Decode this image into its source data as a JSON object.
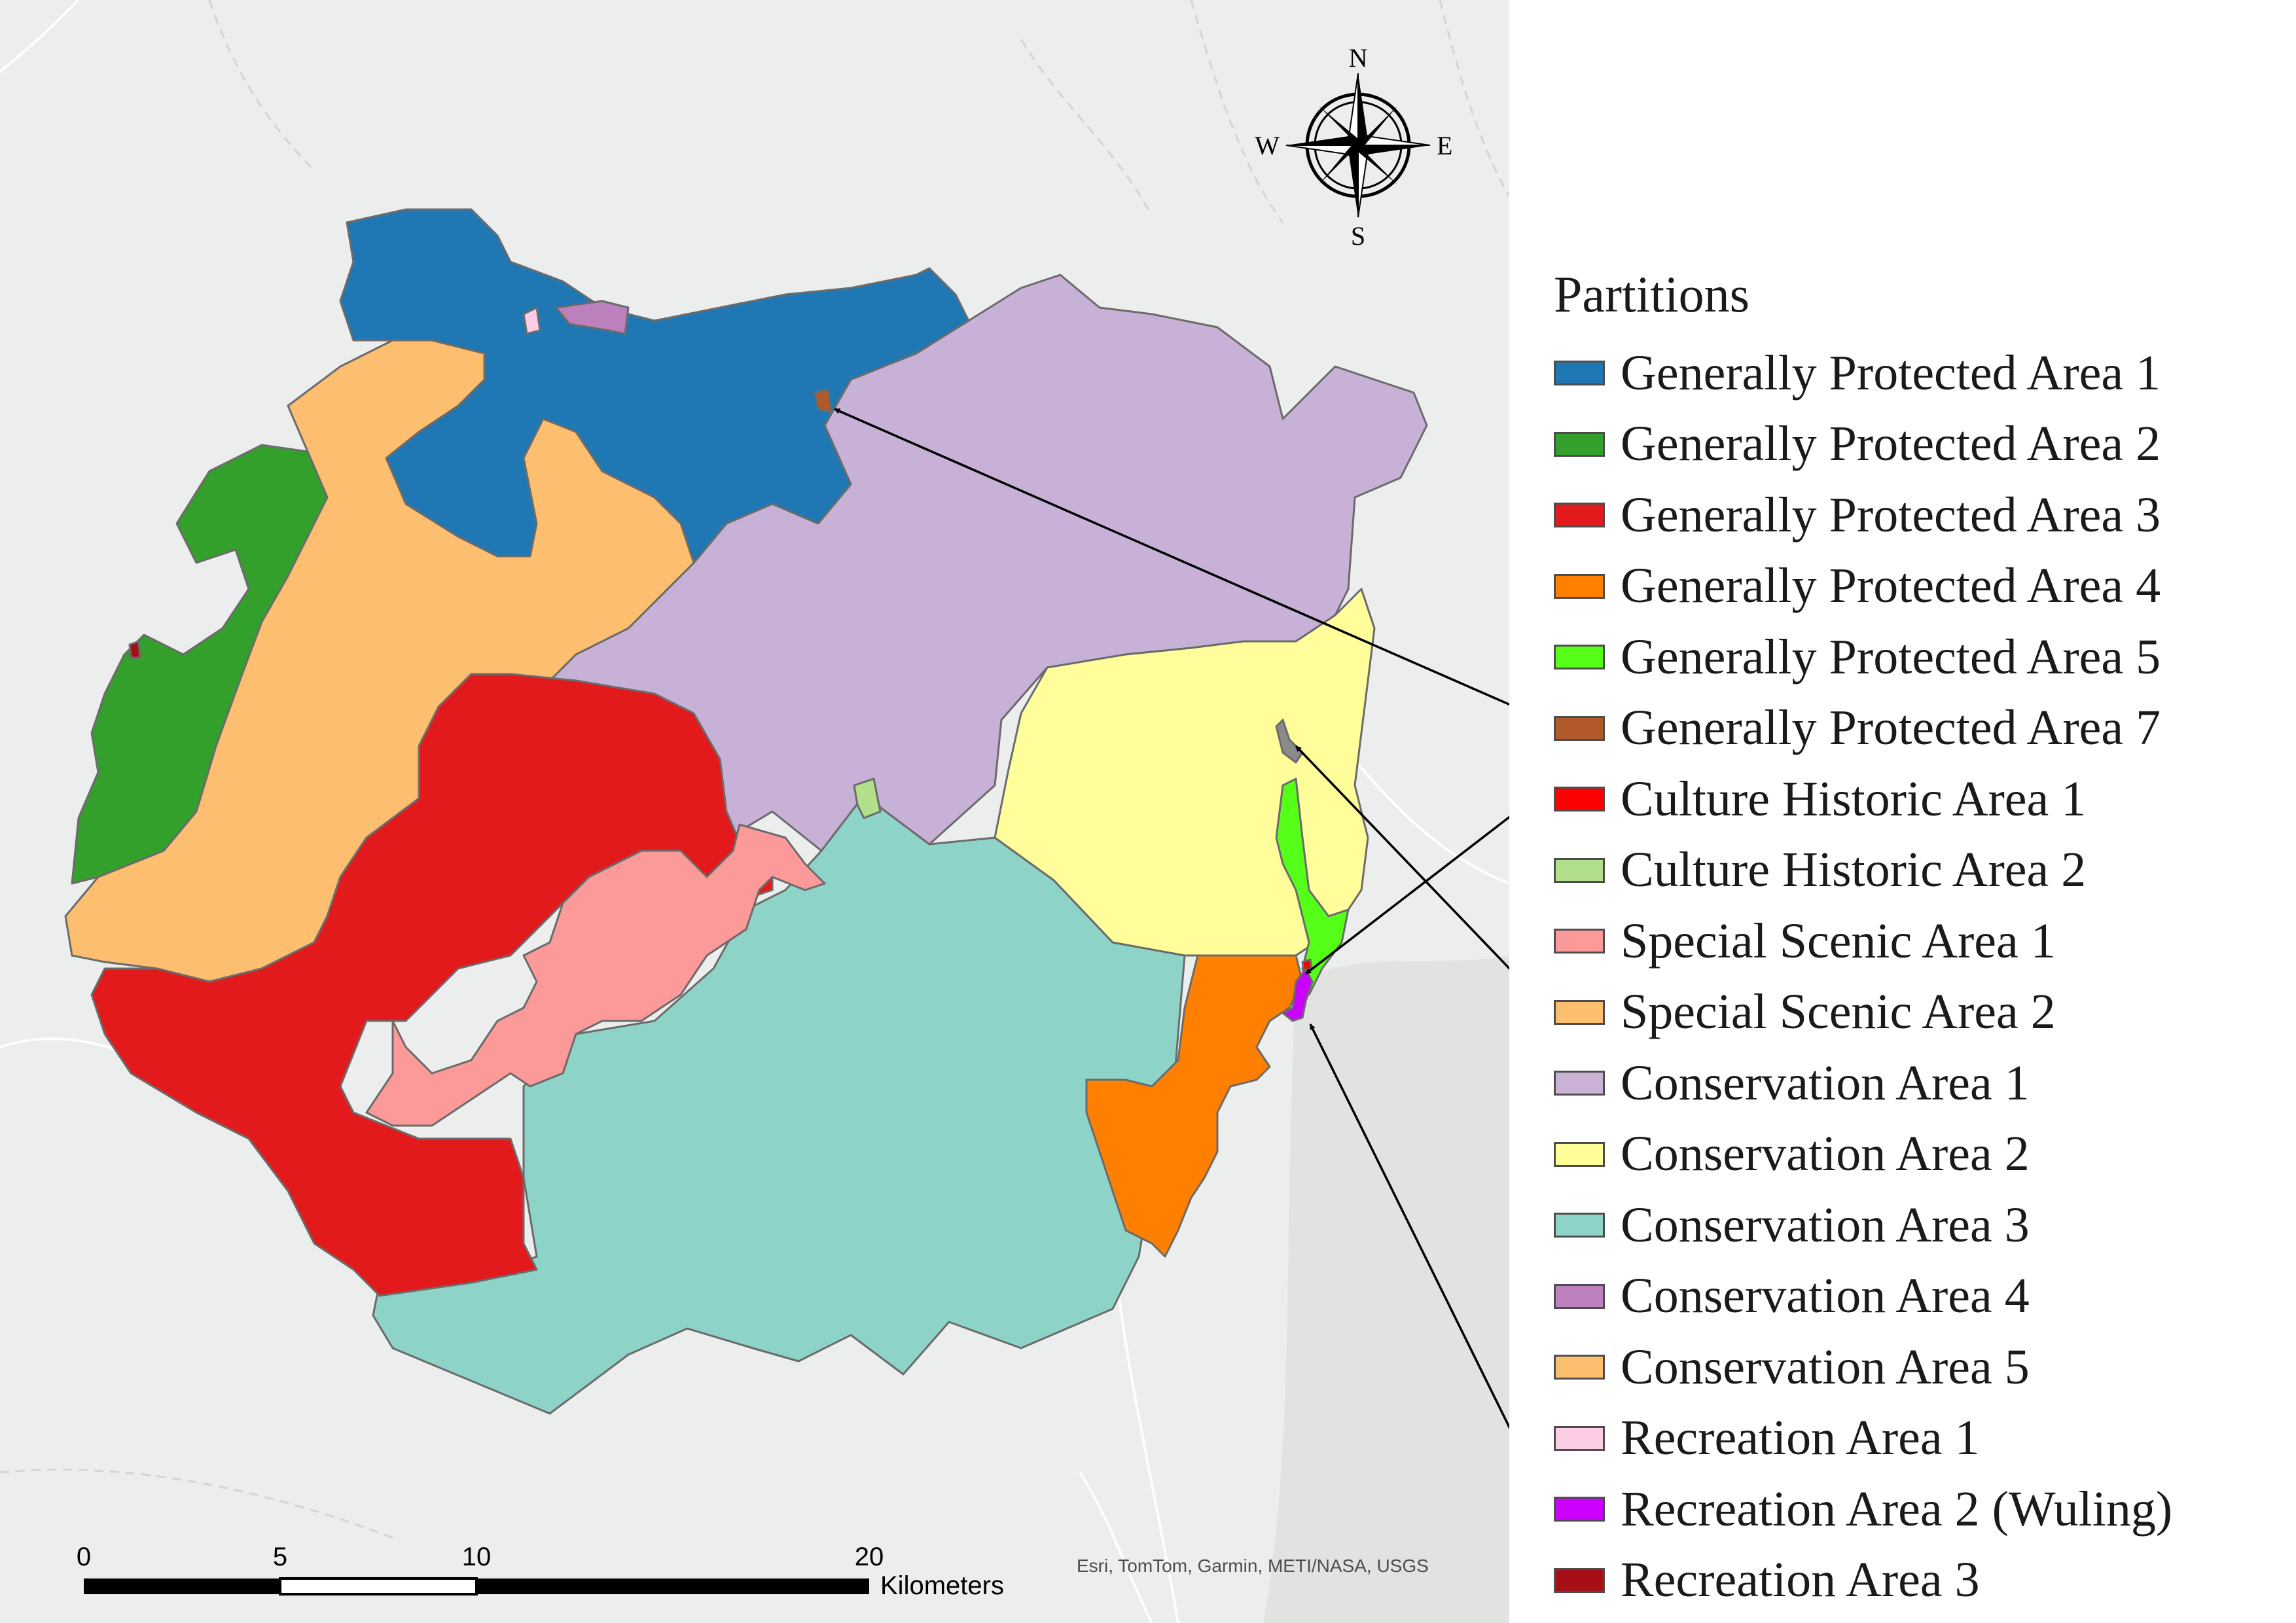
{
  "legend": {
    "title": "Partitions",
    "items": [
      {
        "label": "Generally Protected Area 1",
        "color": "#1f78b4"
      },
      {
        "label": "Generally Protected Area 2",
        "color": "#33a02c"
      },
      {
        "label": "Generally Protected Area 3",
        "color": "#e31a1c"
      },
      {
        "label": "Generally Protected Area 4",
        "color": "#ff7f00"
      },
      {
        "label": "Generally Protected Area 5",
        "color": "#55ff18"
      },
      {
        "label": "Generally Protected Area 7",
        "color": "#b15928"
      },
      {
        "label": "Culture Historic Area 1",
        "color": "#ff0000"
      },
      {
        "label": "Culture Historic Area 2",
        "color": "#b2df8a"
      },
      {
        "label": "Special Scenic Area 1",
        "color": "#fb9a99"
      },
      {
        "label": "Special Scenic Area 2",
        "color": "#fdbf6f"
      },
      {
        "label": "Conservation Area 1",
        "color": "#cab2d6"
      },
      {
        "label": "Conservation Area 2",
        "color": "#ffff99"
      },
      {
        "label": "Conservation Area 3",
        "color": "#8dd3c7"
      },
      {
        "label": "Conservation Area 4",
        "color": "#bc80bd"
      },
      {
        "label": "Conservation Area 5",
        "color": "#fdbf6f"
      },
      {
        "label": "Recreation Area 1",
        "color": "#fccde5"
      },
      {
        "label": "Recreation Area 2 (Wuling)",
        "color": "#cc00ff"
      },
      {
        "label": "Recreation Area 3",
        "color": "#a50f15"
      }
    ]
  },
  "compass": {
    "n": "N",
    "s": "S",
    "e": "E",
    "w": "W"
  },
  "scale_bar": {
    "ticks": [
      "0",
      "5",
      "10",
      "20"
    ],
    "unit": "Kilometers"
  },
  "attribution": "Esri, TomTom, Garmin, METI/NASA, USGS",
  "colors": {
    "basemap": "#eceded",
    "boundary": "#6b6b6b",
    "arrow": "#000000"
  }
}
